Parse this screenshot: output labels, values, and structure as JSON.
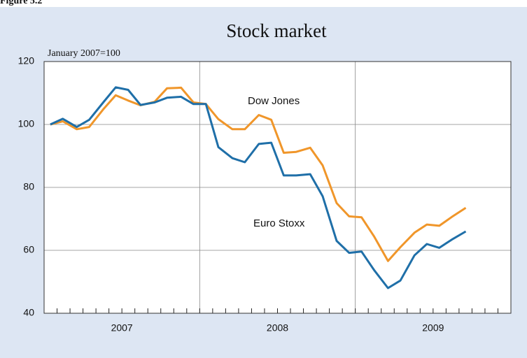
{
  "chart_data": {
    "type": "line",
    "figure_label": "Figure 5.2",
    "title": "Stock market",
    "subtitle": "January 2007=100",
    "x": [
      2007.04,
      2007.12,
      2007.21,
      2007.29,
      2007.38,
      2007.46,
      2007.54,
      2007.62,
      2007.71,
      2007.79,
      2007.88,
      2007.96,
      2008.04,
      2008.12,
      2008.21,
      2008.29,
      2008.38,
      2008.46,
      2008.54,
      2008.62,
      2008.71,
      2008.79,
      2008.88,
      2008.96,
      2009.04,
      2009.12,
      2009.21,
      2009.29,
      2009.38,
      2009.46,
      2009.54,
      2009.62,
      2009.71
    ],
    "series": [
      {
        "name": "Dow Jones",
        "color": "#f0962a",
        "values": [
          100,
          101,
          98.5,
          99.2,
          104.8,
          109.3,
          107.6,
          106.1,
          107.2,
          111.5,
          111.7,
          107,
          106.5,
          101.7,
          98.5,
          98.5,
          103,
          101.5,
          91,
          91.3,
          92.6,
          87,
          75,
          70.8,
          70.5,
          64.5,
          56.6,
          61,
          65.6,
          68.2,
          67.8,
          70.6,
          73.5
        ]
      },
      {
        "name": "Euro Stoxx",
        "color": "#1f6fa8",
        "values": [
          100,
          101.8,
          99.2,
          101.5,
          107,
          111.8,
          111,
          106.2,
          107,
          108.5,
          108.8,
          106.5,
          106.5,
          92.8,
          89.3,
          88,
          93.8,
          94.2,
          83.8,
          83.8,
          84.2,
          77.2,
          63,
          59.2,
          59.6,
          53.8,
          48,
          50.4,
          58.4,
          62,
          60.8,
          63.4,
          66
        ]
      }
    ],
    "xlim": [
      2007,
      2010
    ],
    "xticks": [
      {
        "value": 2007.5,
        "label": "2007"
      },
      {
        "value": 2008.5,
        "label": "2008"
      },
      {
        "value": 2009.5,
        "label": "2009"
      }
    ],
    "xgrid": [
      2008,
      2009
    ],
    "ylim": [
      40,
      120
    ],
    "yticks": [
      40,
      60,
      80,
      100,
      120
    ],
    "grid": true
  }
}
